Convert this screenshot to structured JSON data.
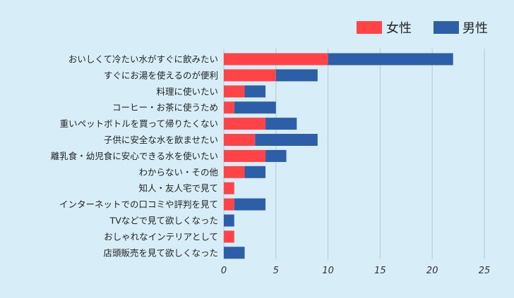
{
  "chart_data": {
    "type": "bar",
    "orientation": "horizontal",
    "stacked": true,
    "categories": [
      "おいしくて冷たい水がすぐに飲みたい",
      "すぐにお湯を使えるのが便利",
      "料理に使いたい",
      "コーヒー・お茶に使うため",
      "重いペットボトルを買って帰りたくない",
      "子供に安全な水を飲ませたい",
      "離乳食・幼児食に安心できる水を使いたい",
      "わからない・その他",
      "知人・友人宅で見て",
      "インターネットでの口コミや評判を見て",
      "TVなどで見て欲しくなった",
      "おしゃれなインテリアとして",
      "店頭販売を見て欲しくなった"
    ],
    "series": [
      {
        "name": "女性",
        "color": "#ff4347",
        "values": [
          10,
          5,
          2,
          1,
          4,
          3,
          4,
          2,
          1,
          1,
          0,
          1,
          0
        ]
      },
      {
        "name": "男性",
        "color": "#2c5fa8",
        "values": [
          12,
          4,
          2,
          4,
          3,
          6,
          2,
          2,
          0,
          3,
          1,
          0,
          2
        ]
      }
    ],
    "xlim": [
      0,
      25
    ],
    "xticks": [
      "0",
      "5",
      "10",
      "15",
      "20",
      "25"
    ],
    "grid": "vertical",
    "legend_position": "top-right",
    "title": "",
    "xlabel": "",
    "ylabel": ""
  }
}
